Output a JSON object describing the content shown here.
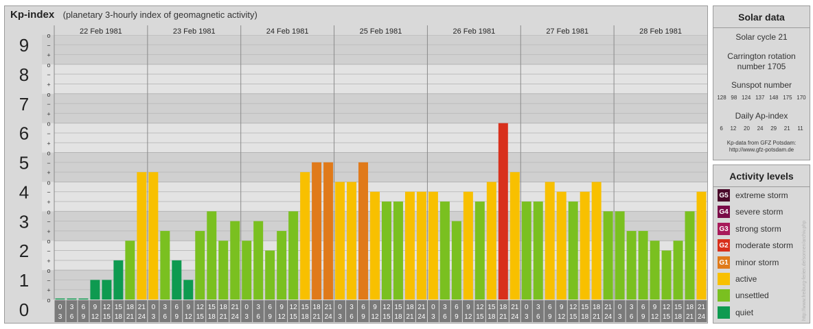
{
  "title": "Kp-index",
  "subtitle": "(planetary 3-hourly index of geomagnetic activity)",
  "solar": {
    "heading": "Solar data",
    "cycle": "Solar cycle 21",
    "carrington_line1": "Carrington rotation",
    "carrington_line2": "number 1705",
    "sunspot_label": "Sunspot number",
    "sunspot_values": [
      "128",
      "98",
      "124",
      "137",
      "148",
      "175",
      "170"
    ],
    "ap_label": "Daily Ap-index",
    "ap_values": [
      "6",
      "12",
      "20",
      "24",
      "29",
      "21",
      "11"
    ],
    "source_line1": "Kp-data from GFZ Potsdam:",
    "source_line2": "http://www.gfz-potsdam.de"
  },
  "activity": {
    "heading": "Activity levels",
    "levels": [
      {
        "code": "G5",
        "label": "extreme storm",
        "color": "#4a0a2a"
      },
      {
        "code": "G4",
        "label": "severe storm",
        "color": "#7a0a48"
      },
      {
        "code": "G3",
        "label": "strong storm",
        "color": "#a81a5a"
      },
      {
        "code": "G2",
        "label": "moderate storm",
        "color": "#d8301c"
      },
      {
        "code": "G1",
        "label": "minor storm",
        "color": "#e07a1a"
      },
      {
        "code": "",
        "label": "active",
        "color": "#f8c000"
      },
      {
        "code": "",
        "label": "unsettled",
        "color": "#7ac020"
      },
      {
        "code": "",
        "label": "quiet",
        "color": "#0e9a50"
      }
    ]
  },
  "watermark": "http://www.freiburg-ferien.de/sonnen/archiv.php",
  "chart_data": {
    "type": "bar",
    "ylim": [
      0,
      9
    ],
    "y_ticks": [
      "0",
      "1",
      "2",
      "3",
      "4",
      "5",
      "6",
      "7",
      "8",
      "9"
    ],
    "minor_tick_labels": [
      "+",
      "o",
      "−"
    ],
    "days": [
      "22 Feb 1981",
      "23 Feb 1981",
      "24 Feb 1981",
      "25 Feb 1981",
      "26 Feb 1981",
      "27 Feb 1981",
      "28 Feb 1981"
    ],
    "interval_starts": [
      "0",
      "3",
      "6",
      "9",
      "12",
      "15",
      "18",
      "21"
    ],
    "interval_ends": [
      "3",
      "6",
      "9",
      "12",
      "15",
      "18",
      "21",
      "24"
    ],
    "values": [
      0,
      0,
      0,
      0.667,
      0.667,
      1.333,
      2,
      4.333,
      4.333,
      2.333,
      1.333,
      0.667,
      2.333,
      3,
      2,
      2.667,
      2,
      2.667,
      1.667,
      2.333,
      3,
      4.333,
      4.667,
      4.667,
      4,
      4,
      4.667,
      3.667,
      3.333,
      3.333,
      3.667,
      3.667,
      3.667,
      3.333,
      2.667,
      3.667,
      3.333,
      4,
      6,
      4.333,
      3.333,
      3.333,
      4,
      3.667,
      3.333,
      3.667,
      4,
      3,
      3,
      2.333,
      2.333,
      2,
      1.667,
      2,
      3,
      3.667
    ],
    "colors": {
      "quiet": "#0e9a50",
      "unsettled": "#7ac020",
      "active": "#f8c000",
      "minor_storm": "#e07a1a",
      "moderate_storm": "#d8301c"
    },
    "grid": true
  }
}
